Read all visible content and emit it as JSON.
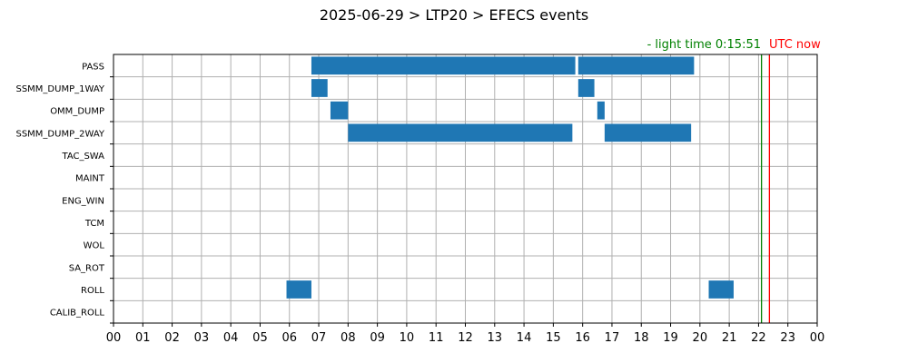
{
  "chart_data": {
    "type": "timeline",
    "title": "2025-06-29 > LTP20 > EFECS events",
    "xlabel": "",
    "ylabel": "",
    "xlim": [
      0,
      24
    ],
    "x_tick_labels": [
      "00",
      "01",
      "02",
      "03",
      "04",
      "05",
      "06",
      "07",
      "08",
      "09",
      "10",
      "11",
      "12",
      "13",
      "14",
      "15",
      "16",
      "17",
      "18",
      "19",
      "20",
      "21",
      "22",
      "23",
      "00"
    ],
    "categories": [
      "PASS",
      "SSMM_DUMP_1WAY",
      "OMM_DUMP",
      "SSMM_DUMP_2WAY",
      "TAC_SWA",
      "MAINT",
      "ENG_WIN",
      "TCM",
      "WOL",
      "SA_ROT",
      "ROLL",
      "CALIB_ROLL"
    ],
    "grid": true,
    "series_color": "#1f77b4",
    "events": [
      {
        "category": "PASS",
        "start": 6.75,
        "end": 15.75
      },
      {
        "category": "PASS",
        "start": 15.85,
        "end": 19.8
      },
      {
        "category": "SSMM_DUMP_1WAY",
        "start": 6.75,
        "end": 7.3
      },
      {
        "category": "SSMM_DUMP_1WAY",
        "start": 15.85,
        "end": 16.4
      },
      {
        "category": "OMM_DUMP",
        "start": 7.4,
        "end": 8.0
      },
      {
        "category": "OMM_DUMP",
        "start": 16.5,
        "end": 16.75
      },
      {
        "category": "SSMM_DUMP_2WAY",
        "start": 8.0,
        "end": 15.65
      },
      {
        "category": "SSMM_DUMP_2WAY",
        "start": 16.75,
        "end": 19.7
      },
      {
        "category": "ROLL",
        "start": 5.9,
        "end": 6.75
      },
      {
        "category": "ROLL",
        "start": 20.3,
        "end": 21.15
      }
    ],
    "reference_lines": [
      {
        "name": "light_time",
        "x": 22.1,
        "color": "#008000",
        "label": "- light time 0:15:51"
      },
      {
        "name": "utc_now",
        "x": 22.37,
        "color": "#ff0000",
        "label": "UTC now"
      }
    ]
  }
}
